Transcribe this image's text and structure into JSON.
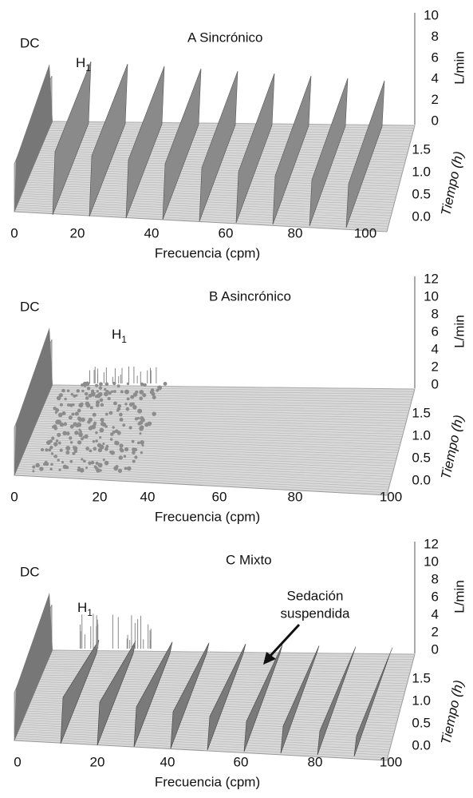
{
  "panels": [
    {
      "title": "A   Sincrónico",
      "dc": "DC",
      "h1": {
        "text": "H",
        "sub": "1"
      },
      "z_label": "L/min",
      "z_ticks": [
        "10",
        "8",
        "6",
        "4",
        "2",
        "0"
      ],
      "depth_label": "Tiempo (h)",
      "depth_ticks": [
        "1.5",
        "1.0",
        "0.5",
        "0.0"
      ],
      "x_label": "Frecuencia (cpm)",
      "x_ticks": [
        "0",
        "20",
        "40",
        "60",
        "80",
        "100"
      ]
    },
    {
      "title": "B   Asincrónico",
      "dc": "DC",
      "h1": {
        "text": "H",
        "sub": "1"
      },
      "z_label": "L/min",
      "z_ticks": [
        "12",
        "10",
        "8",
        "6",
        "4",
        "2",
        "0"
      ],
      "depth_label": "Tiempo (h)",
      "depth_ticks": [
        "1.5",
        "1.0",
        "0.5",
        "0.0"
      ],
      "x_label": "Frecuencia (cpm)",
      "x_ticks": [
        "0",
        "20",
        "40",
        "60",
        "80",
        "100"
      ]
    },
    {
      "title": "C   Mixto",
      "dc": "DC",
      "h1": {
        "text": "H",
        "sub": "1"
      },
      "z_label": "L/min",
      "z_ticks": [
        "12",
        "10",
        "8",
        "6",
        "4",
        "2",
        "0"
      ],
      "depth_label": "Tiempo (h)",
      "depth_ticks": [
        "1.5",
        "1.0",
        "0.5",
        "0.0"
      ],
      "x_label": "Frecuencia (cpm)",
      "x_ticks": [
        "0",
        "20",
        "40",
        "60",
        "80",
        "100"
      ],
      "annotation": [
        "Sedación",
        "suspendida"
      ]
    }
  ]
}
